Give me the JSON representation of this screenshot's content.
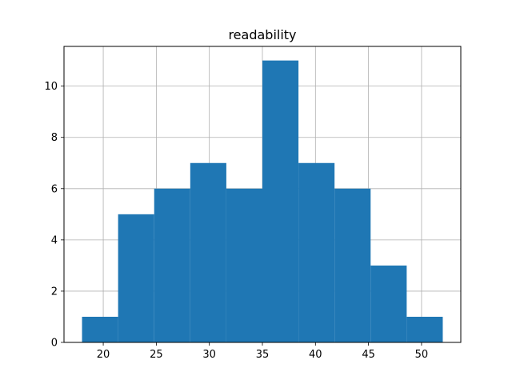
{
  "chart_data": {
    "type": "bar",
    "title": "readability",
    "xlabel": "",
    "ylabel": "",
    "bins": [
      {
        "x0": 18.0,
        "x1": 21.4,
        "count": 1
      },
      {
        "x0": 21.4,
        "x1": 24.8,
        "count": 5
      },
      {
        "x0": 24.8,
        "x1": 28.2,
        "count": 6
      },
      {
        "x0": 28.2,
        "x1": 31.6,
        "count": 7
      },
      {
        "x0": 31.6,
        "x1": 35.0,
        "count": 6
      },
      {
        "x0": 35.0,
        "x1": 38.4,
        "count": 11
      },
      {
        "x0": 38.4,
        "x1": 41.8,
        "count": 7
      },
      {
        "x0": 41.8,
        "x1": 45.2,
        "count": 6
      },
      {
        "x0": 45.2,
        "x1": 48.6,
        "count": 3
      },
      {
        "x0": 48.6,
        "x1": 52.0,
        "count": 1
      }
    ],
    "xlim": [
      16.3,
      53.7
    ],
    "ylim": [
      0,
      11.55
    ],
    "xticks": [
      20,
      25,
      30,
      35,
      40,
      45,
      50
    ],
    "yticks": [
      0,
      2,
      4,
      6,
      8,
      10
    ],
    "grid": true,
    "bar_color": "#1f77b4"
  }
}
